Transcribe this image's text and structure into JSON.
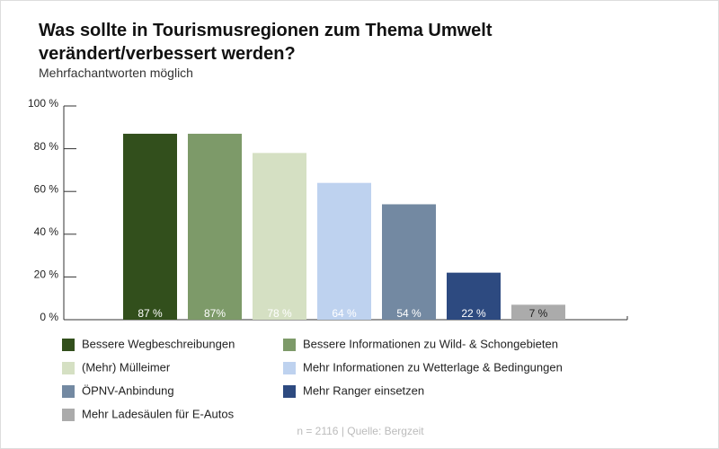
{
  "chart_data": {
    "type": "bar",
    "title": "Was sollte in Tourismusregionen zum Thema Umwelt verändert/verbessert werden?",
    "subtitle": "Mehrfachantworten möglich",
    "categories": [
      "Bessere Wegbeschreibungen",
      "Bessere Informationen zu Wild- & Schongebieten",
      "(Mehr) Mülleimer",
      "Mehr Informationen zu Wetterlage & Bedingungen",
      "ÖPNV-Anbindung",
      "Mehr Ranger einsetzen",
      "Mehr Ladesäulen für E-Autos"
    ],
    "values": [
      87,
      87,
      78,
      64,
      54,
      22,
      7
    ],
    "value_labels": [
      "87 %",
      "87%",
      "78 %",
      "64 %",
      "54 %",
      "22 %",
      "7 %"
    ],
    "colors": [
      "#324f1c",
      "#7d9a69",
      "#d5e0c3",
      "#bed2ef",
      "#7389a2",
      "#2d4a80",
      "#ababab"
    ],
    "ylim": [
      0,
      100
    ],
    "yticks": [
      {
        "value": 0,
        "label": "0 %"
      },
      {
        "value": 20,
        "label": "20 %"
      },
      {
        "value": 40,
        "label": "40 %"
      },
      {
        "value": 60,
        "label": "60 %"
      },
      {
        "value": 80,
        "label": "80 %"
      },
      {
        "value": 100,
        "label": "100 %"
      }
    ],
    "source": "n = 2116 | Quelle: Bergzeit"
  }
}
